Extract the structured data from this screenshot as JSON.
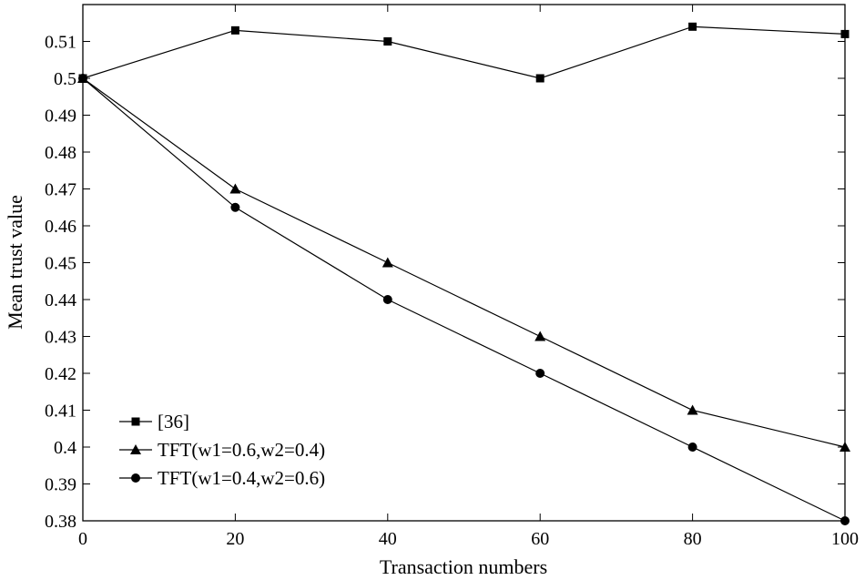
{
  "chart_data": {
    "type": "line",
    "title": "",
    "xlabel": "Transaction numbers",
    "ylabel": "Mean trust value",
    "xlim": [
      0,
      100
    ],
    "ylim": [
      0.38,
      0.52
    ],
    "xticks": [
      0,
      20,
      40,
      60,
      80,
      100
    ],
    "xtick_labels": [
      "0",
      "20",
      "40",
      "60",
      "80",
      "100"
    ],
    "yticks": [
      0.38,
      0.39,
      0.4,
      0.41,
      0.42,
      0.43,
      0.44,
      0.45,
      0.46,
      0.47,
      0.48,
      0.49,
      0.5,
      0.51
    ],
    "ytick_labels": [
      "0.38",
      "0.39",
      "0.4",
      "0.41",
      "0.42",
      "0.43",
      "0.44",
      "0.45",
      "0.46",
      "0.47",
      "0.48",
      "0.49",
      "0.5",
      "0.51"
    ],
    "x": [
      0,
      20,
      40,
      60,
      80,
      100
    ],
    "series": [
      {
        "name": "[36]",
        "marker": "square",
        "values": [
          0.5,
          0.513,
          0.51,
          0.5,
          0.514,
          0.512
        ]
      },
      {
        "name": "TFT(w1=0.6,w2=0.4)",
        "marker": "triangle",
        "values": [
          0.5,
          0.47,
          0.45,
          0.43,
          0.41,
          0.4
        ]
      },
      {
        "name": "TFT(w1=0.4,w2=0.6)",
        "marker": "circle",
        "values": [
          0.5,
          0.465,
          0.44,
          0.42,
          0.4,
          0.38
        ]
      }
    ],
    "legend_position": "bottom-left",
    "grid": false,
    "colors": {
      "line": "#000000",
      "axes": "#000000"
    }
  }
}
